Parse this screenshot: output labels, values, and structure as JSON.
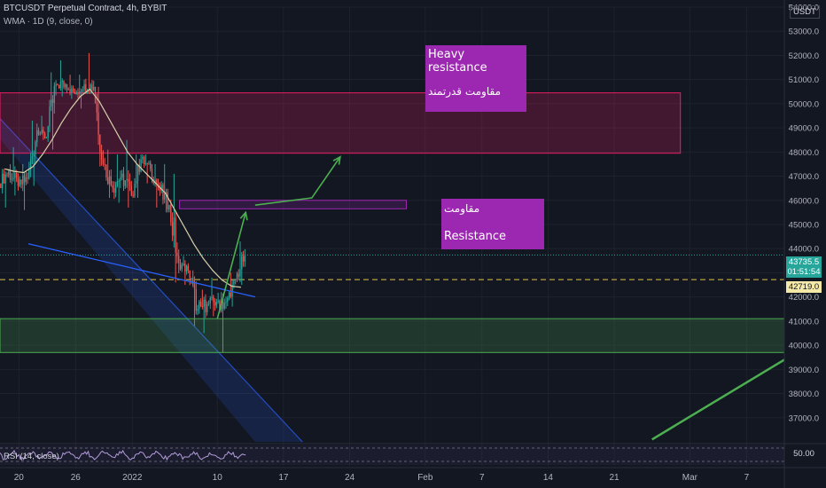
{
  "header": {
    "symbol_line": "BTCUSDT Perpetual Contract, 4h, BYBIT",
    "indicator_line": "WMA · 1D (9, close, 0)",
    "currency": "USDT"
  },
  "annotations": {
    "heavy": {
      "line1": "Heavy",
      "line2": "resistance",
      "line3": "مقاومت قدرتمند"
    },
    "resistance": {
      "line1": "مقاومت",
      "line2": "Resistance"
    }
  },
  "price_tags": {
    "last": "43735.5",
    "countdown": "01:51:54",
    "level": "42719.0"
  },
  "rsi": {
    "label": "RSI (14, close)",
    "value": "50.00"
  },
  "colors": {
    "background": "#131722",
    "up_candle": "#26a69a",
    "down_candle": "#ef5350",
    "wma": "#d6d0a8",
    "heavy_zone": "#e91e63",
    "resistance_zone": "#9c27b0",
    "support_zone": "#4caf50",
    "arrow": "#4caf50",
    "annotation": "#9c27b0",
    "dashed_level": "#e0c24a",
    "wedge": "#2962ff"
  },
  "chart_data": {
    "type": "candlestick",
    "y_axis": {
      "min": 36000,
      "max": 54000,
      "ticks": [
        37000,
        38000,
        39000,
        40000,
        41000,
        42000,
        43000,
        44000,
        45000,
        46000,
        47000,
        48000,
        49000,
        50000,
        51000,
        52000,
        53000,
        54000
      ],
      "tick_labels": [
        "37000.0",
        "38000.0",
        "39000.0",
        "40000.0",
        "41000.0",
        "42000.0",
        "43000.0",
        "44000.0",
        "45000.0",
        "46000.0",
        "47000.0",
        "48000.0",
        "49000.0",
        "50000.0",
        "51000.0",
        "52000.0",
        "53000.0",
        "54000.0"
      ]
    },
    "x_labels": [
      "20",
      "26",
      "2022",
      "10",
      "17",
      "24",
      "Feb",
      "7",
      "14",
      "21",
      "Mar",
      "7"
    ],
    "ohlc_daily": [
      [
        "2021-12-18",
        46700,
        47300,
        45700,
        47200
      ],
      [
        "2021-12-19",
        47200,
        48200,
        46200,
        46600
      ],
      [
        "2021-12-20",
        46600,
        47500,
        45600,
        46900
      ],
      [
        "2021-12-21",
        46900,
        49300,
        46600,
        48900
      ],
      [
        "2021-12-22",
        48900,
        49500,
        48500,
        48600
      ],
      [
        "2021-12-23",
        48600,
        51300,
        48100,
        50800
      ],
      [
        "2021-12-24",
        50800,
        51800,
        50300,
        50800
      ],
      [
        "2021-12-25",
        50800,
        51200,
        50200,
        50400
      ],
      [
        "2021-12-26",
        50400,
        51200,
        49800,
        50800
      ],
      [
        "2021-12-27",
        50800,
        52100,
        50400,
        50700
      ],
      [
        "2021-12-28",
        50700,
        50700,
        47400,
        47500
      ],
      [
        "2021-12-29",
        47500,
        48100,
        46100,
        46500
      ],
      [
        "2021-12-30",
        46500,
        47900,
        45900,
        47100
      ],
      [
        "2021-12-31",
        47100,
        48500,
        45700,
        46200
      ],
      [
        "2022-01-01",
        46200,
        47900,
        46100,
        47700
      ],
      [
        "2022-01-02",
        47700,
        47900,
        46700,
        47300
      ],
      [
        "2022-01-03",
        47300,
        47500,
        45700,
        46400
      ],
      [
        "2022-01-04",
        46400,
        47500,
        45500,
        45800
      ],
      [
        "2022-01-05",
        45800,
        47100,
        42600,
        43400
      ],
      [
        "2022-01-06",
        43400,
        43700,
        42500,
        43100
      ],
      [
        "2022-01-07",
        43100,
        43100,
        40800,
        41500
      ],
      [
        "2022-01-08",
        41500,
        42300,
        40500,
        41700
      ],
      [
        "2022-01-09",
        41700,
        42800,
        41200,
        41800
      ],
      [
        "2022-01-10",
        41800,
        42200,
        39700,
        41800
      ],
      [
        "2022-01-11",
        41800,
        43000,
        41600,
        42700
      ],
      [
        "2022-01-12",
        42700,
        44300,
        42500,
        43735.5
      ]
    ],
    "wma_daily": [
      47300,
      47200,
      47150,
      47400,
      47900,
      48500,
      49200,
      49800,
      50300,
      50600,
      50100,
      49400,
      48700,
      48000,
      47500,
      47100,
      46700,
      46300,
      45600,
      44900,
      44200,
      43600,
      43100,
      42700,
      42450,
      42400
    ],
    "x_range": [
      "2021-12-18",
      "2022-03-11"
    ],
    "zones": [
      {
        "name": "heavy-resistance",
        "from": "2021-12-18",
        "to": "2022-02-28",
        "low": 47950,
        "high": 50450
      },
      {
        "name": "resistance",
        "from": "2022-01-06",
        "to": "2022-01-30",
        "low": 45650,
        "high": 46000
      },
      {
        "name": "support",
        "from": "2021-12-18",
        "to": "2022-03-11",
        "low": 39700,
        "high": 41100
      }
    ],
    "arrows": [
      [
        [
          "2022-01-10",
          41100
        ],
        [
          "2022-01-13",
          45500
        ]
      ],
      [
        [
          "2022-01-14",
          45800
        ],
        [
          "2022-01-20",
          46100
        ],
        [
          "2022-01-23",
          47800
        ]
      ],
      [
        [
          "2022-02-25",
          36100
        ],
        [
          "2022-03-11",
          39400
        ]
      ]
    ],
    "trendlines": [
      [
        [
          "2021-12-21",
          44200
        ],
        [
          "2022-01-14",
          42000
        ]
      ],
      [
        [
          "2021-12-17",
          49800
        ],
        [
          "2022-01-19",
          36000
        ]
      ],
      [
        [
          "2021-12-17",
          49000
        ],
        [
          "2022-01-14",
          36000
        ]
      ]
    ],
    "levels": [
      {
        "name": "last-price",
        "value": 43735.5,
        "style": "dotted"
      },
      {
        "name": "level-42719",
        "value": 42719,
        "style": "dashed"
      }
    ]
  }
}
